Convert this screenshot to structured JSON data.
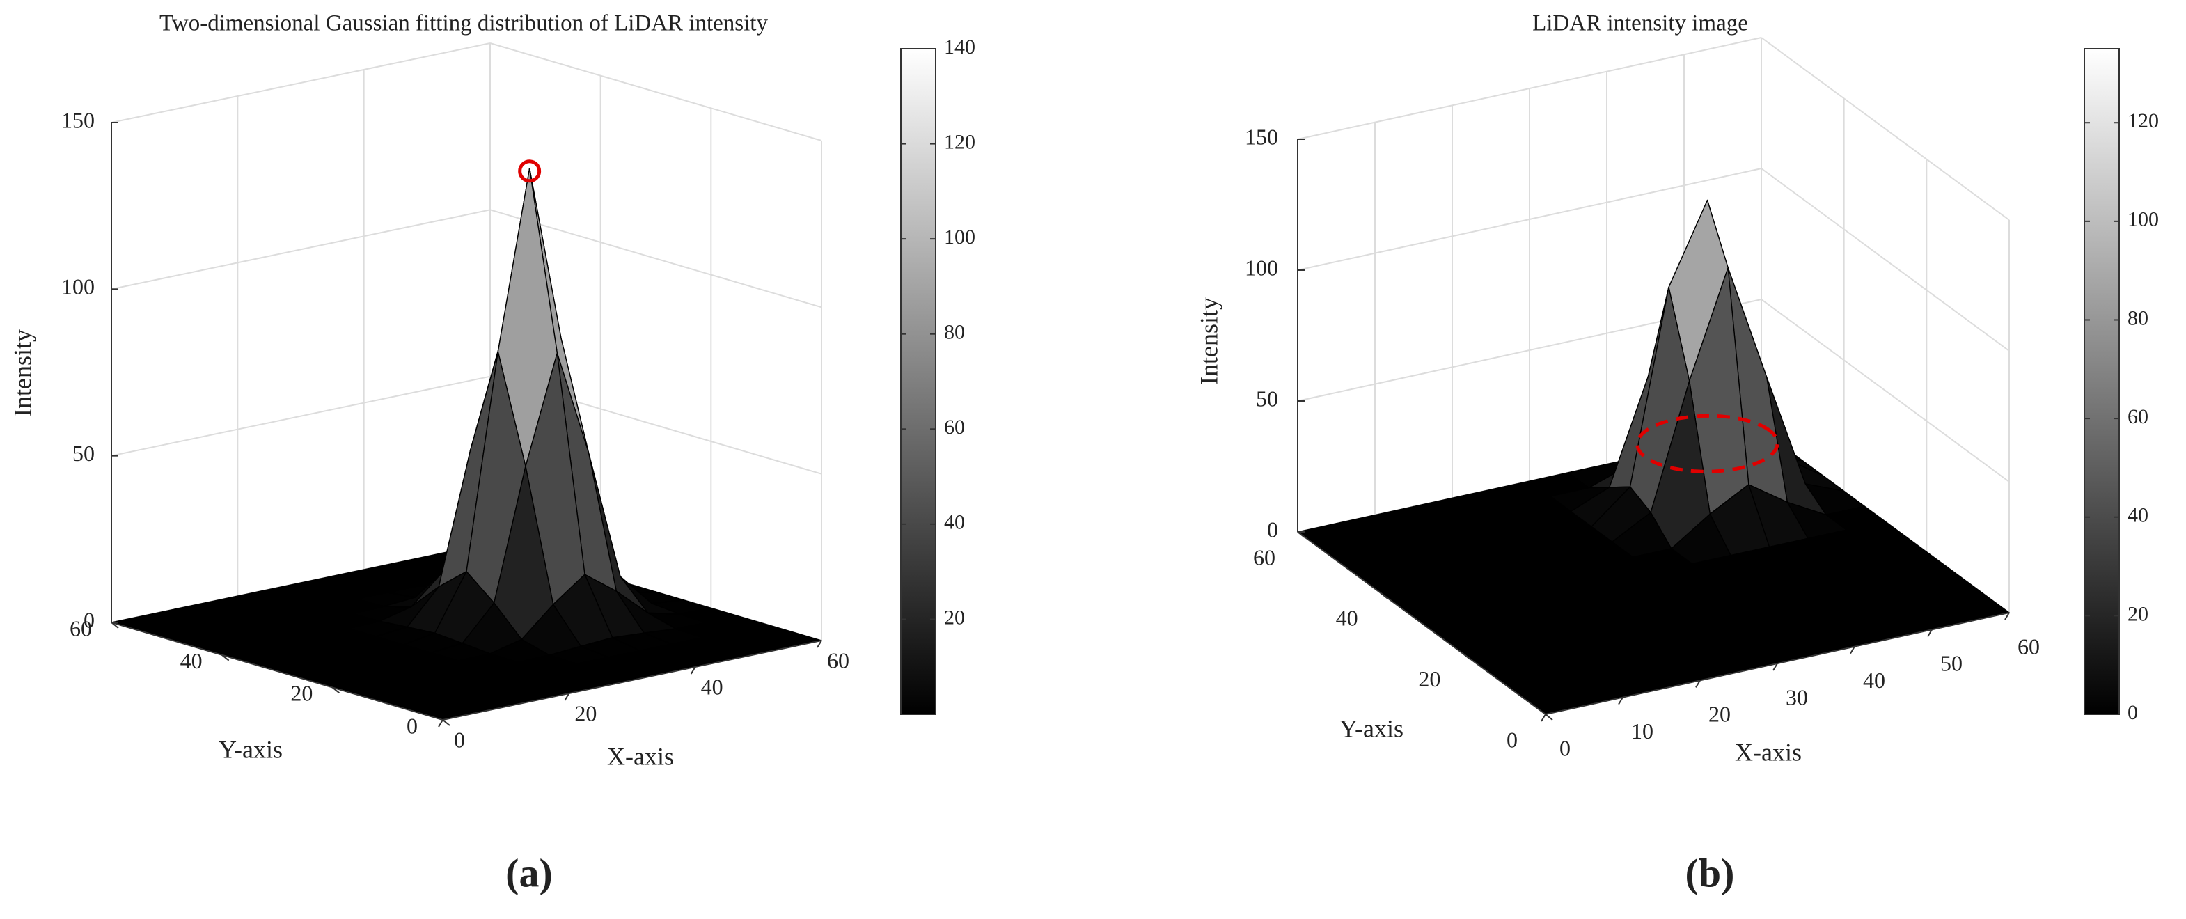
{
  "chart_data": [
    {
      "type": "surface",
      "title": "Two-dimensional Gaussian fitting distribution of LiDAR intensity",
      "label": "(a)",
      "xlabel": "X-axis",
      "ylabel": "Y-axis",
      "zlabel": "Intensity",
      "x": [
        0,
        5,
        10,
        15,
        20,
        25,
        30,
        35,
        40,
        45,
        50,
        55,
        60
      ],
      "y": [
        0,
        5,
        10,
        15,
        20,
        25,
        30,
        35,
        40,
        45,
        50,
        55,
        60
      ],
      "z": [
        [
          0,
          0,
          0,
          0,
          0,
          0,
          0,
          0,
          0,
          0,
          0,
          0,
          0
        ],
        [
          0,
          0,
          0,
          0,
          0,
          0,
          0,
          0,
          0,
          0,
          0,
          0,
          0
        ],
        [
          0,
          0,
          0,
          0,
          0,
          0,
          0,
          0,
          0,
          0,
          0,
          0,
          0
        ],
        [
          0,
          0,
          0,
          0,
          0,
          0,
          0.2,
          0.9,
          1.5,
          0.9,
          0.2,
          0,
          0
        ],
        [
          0,
          0,
          0,
          0,
          0,
          0.2,
          2.5,
          11,
          18,
          11,
          2.5,
          0.2,
          0
        ],
        [
          0,
          0,
          0,
          0,
          0,
          0.9,
          11,
          50,
          82,
          50,
          11,
          0.9,
          0
        ],
        [
          0,
          0,
          0,
          0,
          0,
          1.5,
          18,
          82,
          135,
          82,
          18,
          1.5,
          0
        ],
        [
          0,
          0,
          0,
          0,
          0,
          0.9,
          11,
          50,
          82,
          50,
          11,
          0.9,
          0
        ],
        [
          0,
          0,
          0,
          0,
          0,
          0.2,
          2.5,
          11,
          18,
          11,
          2.5,
          0.2,
          0
        ],
        [
          0,
          0,
          0,
          0,
          0,
          0,
          0.2,
          0.9,
          1.5,
          0.9,
          0.2,
          0,
          0
        ],
        [
          0,
          0,
          0,
          0,
          0,
          0,
          0,
          0,
          0,
          0,
          0,
          0,
          0
        ],
        [
          0,
          0,
          0,
          0,
          0,
          0,
          0,
          0,
          0,
          0,
          0,
          0,
          0
        ],
        [
          0,
          0,
          0,
          0,
          0,
          0,
          0,
          0,
          0,
          0,
          0,
          0,
          0
        ]
      ],
      "xlim": [
        0,
        60
      ],
      "xticks": [
        0,
        20,
        40,
        60
      ],
      "ylim": [
        0,
        60
      ],
      "yticks": [
        0,
        20,
        40,
        60
      ],
      "zlim": [
        0,
        150
      ],
      "zticks": [
        0,
        50,
        100,
        150
      ],
      "clim": [
        0,
        140
      ],
      "cticks": [
        20,
        40,
        60,
        80,
        100,
        120,
        140
      ],
      "marker_color": "#e00000",
      "grid": true
    },
    {
      "type": "surface",
      "title": "LiDAR intensity image",
      "label": "(b)",
      "xlabel": "X-axis",
      "ylabel": "Y-axis",
      "zlabel": "Intensity",
      "x": [
        0,
        5,
        10,
        15,
        20,
        25,
        30,
        35,
        40,
        45,
        50,
        55,
        60
      ],
      "y": [
        0,
        5,
        10,
        15,
        20,
        25,
        30,
        35,
        40,
        45,
        50,
        55,
        60
      ],
      "z": [
        [
          0,
          0,
          0,
          0,
          0,
          0,
          0,
          0,
          0,
          0,
          0,
          0,
          0
        ],
        [
          0,
          0,
          0,
          0,
          0,
          0,
          0,
          0,
          0,
          0,
          0,
          0,
          0
        ],
        [
          0,
          0,
          0,
          0,
          0,
          0,
          0,
          0,
          0,
          0,
          0,
          0,
          0
        ],
        [
          0,
          0,
          0,
          0,
          0,
          0,
          0,
          0,
          0,
          0,
          0,
          0,
          0
        ],
        [
          0,
          0,
          0,
          0,
          0,
          0,
          0,
          0,
          0,
          0,
          0,
          0,
          0
        ],
        [
          0,
          0,
          0,
          0,
          0,
          0,
          0,
          0,
          0,
          0,
          0,
          0,
          0
        ],
        [
          0,
          0,
          0,
          0,
          0,
          0,
          0,
          0,
          0,
          0,
          0,
          0,
          0
        ],
        [
          0,
          0,
          0,
          0,
          0,
          0,
          0,
          0,
          10,
          18,
          8,
          0,
          0
        ],
        [
          0,
          0,
          0,
          0,
          0,
          0,
          0,
          8,
          55,
          95,
          50,
          6,
          0
        ],
        [
          0,
          0,
          0,
          0,
          0,
          0,
          0,
          12,
          85,
          115,
          60,
          10,
          0
        ],
        [
          0,
          0,
          0,
          0,
          0,
          0,
          0,
          6,
          45,
          70,
          30,
          4,
          0
        ],
        [
          0,
          0,
          0,
          0,
          0,
          0,
          0,
          0,
          5,
          9,
          3,
          0,
          0
        ],
        [
          0,
          0,
          0,
          0,
          0,
          0,
          0,
          0,
          0,
          0,
          0,
          0,
          0
        ]
      ],
      "xlim": [
        0,
        60
      ],
      "xticks": [
        0,
        10,
        20,
        30,
        40,
        50,
        60
      ],
      "ylim": [
        0,
        60
      ],
      "yticks": [
        0,
        20,
        40,
        60
      ],
      "zlim": [
        0,
        150
      ],
      "zticks": [
        0,
        50,
        100,
        150
      ],
      "clim": [
        0,
        135
      ],
      "cticks": [
        0,
        20,
        40,
        60,
        80,
        100,
        120
      ],
      "marker_color": "#e00000",
      "grid": true
    }
  ]
}
